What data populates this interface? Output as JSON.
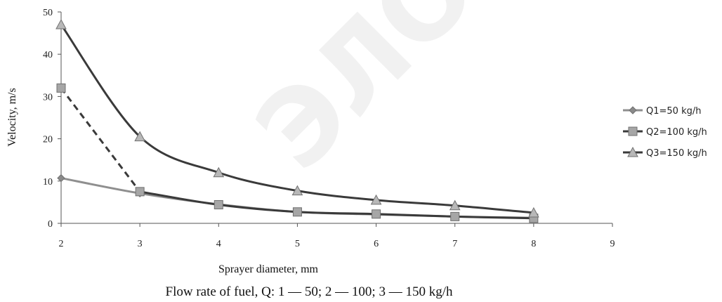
{
  "chart_data": {
    "type": "line",
    "xlabel": "Sprayer diameter, mm",
    "ylabel": "Velocity, m/s",
    "caption": "Flow rate of fuel, Q: 1 — 50; 2 — 100; 3 — 150 kg/h",
    "xlim": [
      2,
      9
    ],
    "ylim": [
      0,
      50
    ],
    "x_ticks": [
      2,
      3,
      4,
      5,
      6,
      7,
      8,
      9
    ],
    "y_ticks": [
      0,
      10,
      20,
      30,
      40,
      50
    ],
    "grid": false,
    "legend_position": "right",
    "series": [
      {
        "name": "Q1=50 kg/h",
        "marker": "diamond",
        "color": "#8f8f8f",
        "x": [
          2,
          3,
          4,
          5,
          6,
          7,
          8
        ],
        "y": [
          10.7,
          7.1,
          4.5,
          2.7,
          2.1,
          1.6,
          1.3
        ]
      },
      {
        "name": "Q2=100 kg/h",
        "marker": "square",
        "color": "#3a3a3a",
        "dashed_segment_x": [
          2,
          3
        ],
        "x": [
          2,
          3,
          4,
          5,
          6,
          7,
          8
        ],
        "y": [
          32,
          7.5,
          4.4,
          2.7,
          2.2,
          1.6,
          1.2
        ]
      },
      {
        "name": "Q3=150 kg/h",
        "marker": "triangle",
        "color": "#3a3a3a",
        "x": [
          2,
          3,
          4,
          5,
          6,
          7,
          8
        ],
        "y": [
          47,
          20.5,
          12,
          7.7,
          5.5,
          4.2,
          2.5
        ]
      }
    ]
  }
}
